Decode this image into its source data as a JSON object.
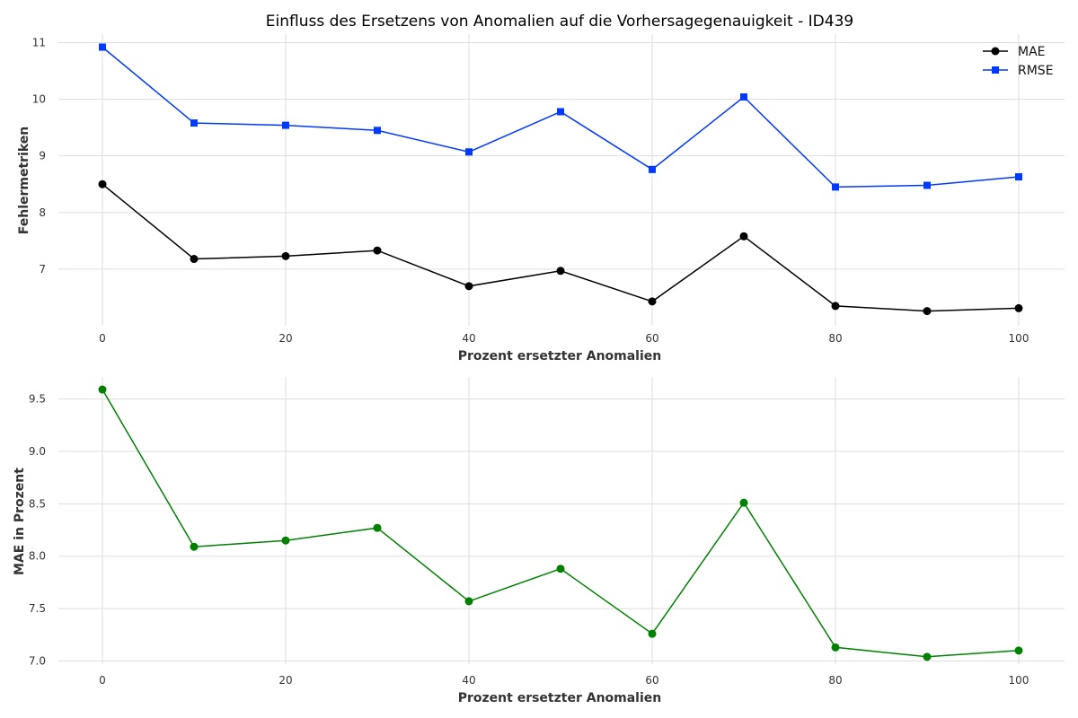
{
  "chart_data": [
    {
      "type": "line",
      "title": "Einfluss des Ersetzens von Anomalien auf die Vorhersagegenauigkeit - ID439",
      "xlabel": "Prozent ersetzter Anomalien",
      "ylabel": "Fehlermetriken",
      "x": [
        0,
        10,
        20,
        30,
        40,
        50,
        60,
        70,
        80,
        90,
        100
      ],
      "xticks": [
        0,
        20,
        40,
        60,
        80,
        100
      ],
      "yticks": [
        7,
        8,
        9,
        10,
        11
      ],
      "ylim": [
        6.0,
        11.15
      ],
      "grid": true,
      "legend": "top-right",
      "series": [
        {
          "name": "MAE",
          "color": "#000000",
          "marker": "circle",
          "values": [
            8.5,
            7.18,
            7.23,
            7.33,
            6.7,
            6.97,
            6.43,
            7.58,
            6.35,
            6.26,
            6.31
          ]
        },
        {
          "name": "RMSE",
          "color": "#0039ff",
          "marker": "square",
          "values": [
            10.92,
            9.58,
            9.54,
            9.45,
            9.07,
            9.78,
            8.76,
            10.04,
            8.45,
            8.48,
            8.63
          ]
        }
      ]
    },
    {
      "type": "line",
      "title": "",
      "xlabel": "Prozent ersetzter Anomalien",
      "ylabel": "MAE in Prozent",
      "x": [
        0,
        10,
        20,
        30,
        40,
        50,
        60,
        70,
        80,
        90,
        100
      ],
      "xticks": [
        0,
        20,
        40,
        60,
        80,
        100
      ],
      "yticks": [
        7.0,
        7.5,
        8.0,
        8.5,
        9.0,
        9.5
      ],
      "ylim": [
        6.97,
        9.71
      ],
      "grid": true,
      "series": [
        {
          "color": "#008000",
          "marker": "circle",
          "values": [
            9.59,
            8.09,
            8.15,
            8.27,
            7.57,
            7.88,
            7.26,
            8.51,
            7.13,
            7.04,
            7.1
          ]
        }
      ]
    }
  ]
}
